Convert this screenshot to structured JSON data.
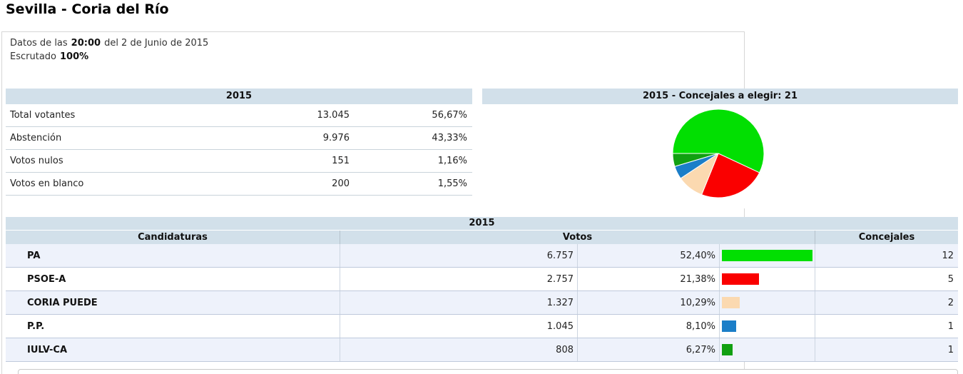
{
  "page": {
    "title": "Sevilla - Coria del Río"
  },
  "info": {
    "line1_prefix": "Datos de las",
    "time": "20:00",
    "line1_suffix": "del 2 de Junio de 2015",
    "line2_prefix": "Escrutado",
    "escrutado": "100%"
  },
  "summary_table": {
    "header": "2015",
    "rows": [
      {
        "label": "Total votantes",
        "value": "13.045",
        "pct": "56,67%"
      },
      {
        "label": "Abstención",
        "value": "9.976",
        "pct": "43,33%"
      },
      {
        "label": "Votos nulos",
        "value": "151",
        "pct": "1,16%"
      },
      {
        "label": "Votos en blanco",
        "value": "200",
        "pct": "1,55%"
      }
    ]
  },
  "chart": {
    "header": "2015 - Concejales a elegir: 21"
  },
  "chart_data": {
    "type": "pie",
    "title": "2015 - Concejales a elegir: 21",
    "labels": [
      "PA",
      "PSOE-A",
      "CORIA PUEDE",
      "P.P.",
      "IULV-CA"
    ],
    "values": [
      12,
      5,
      2,
      1,
      1
    ],
    "total": 21,
    "unit": "concejales",
    "colors": [
      "#02df02",
      "#fa0000",
      "#fbd9b0",
      "#1b7ec8",
      "#11a011"
    ],
    "start_angle_deg": 180,
    "direction": "clockwise",
    "legend": "none"
  },
  "results_table": {
    "year_header": "2015",
    "columns": {
      "candidaturas": "Candidaturas",
      "votos": "Votos",
      "concejales": "Concejales"
    },
    "rows": [
      {
        "name": "PA",
        "votes": "6.757",
        "pct": "52,40%",
        "pct_value": 52.4,
        "seats": "12",
        "color": "#02df02"
      },
      {
        "name": "PSOE-A",
        "votes": "2.757",
        "pct": "21,38%",
        "pct_value": 21.38,
        "seats": "5",
        "color": "#fa0000"
      },
      {
        "name": "CORIA PUEDE",
        "votes": "1.327",
        "pct": "10,29%",
        "pct_value": 10.29,
        "seats": "2",
        "color": "#fbd9b0"
      },
      {
        "name": "P.P.",
        "votes": "1.045",
        "pct": "8,10%",
        "pct_value": 8.1,
        "seats": "1",
        "color": "#1b7ec8"
      },
      {
        "name": "IULV-CA",
        "votes": "808",
        "pct": "6,27%",
        "pct_value": 6.27,
        "seats": "1",
        "color": "#11a011"
      }
    ]
  },
  "colors": {
    "header_bar": "#d2e0ea",
    "row_alt": "#eef2fb",
    "row_border": "#bfc9dc",
    "box_border": "#d6d6d6"
  }
}
